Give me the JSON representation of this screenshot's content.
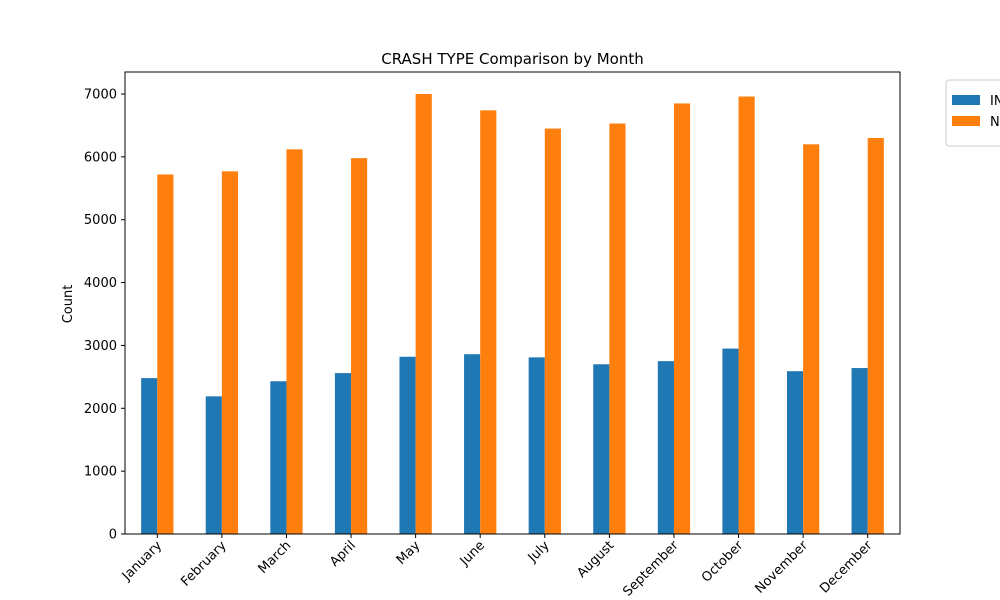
{
  "chart_data": {
    "type": "bar",
    "title": "CRASH TYPE Comparison by Month",
    "xlabel": "",
    "ylabel": "Count",
    "categories": [
      "January",
      "February",
      "March",
      "April",
      "May",
      "June",
      "July",
      "August",
      "September",
      "October",
      "November",
      "December"
    ],
    "series": [
      {
        "name": "IN",
        "color": "#1f77b4",
        "values": [
          2480,
          2190,
          2430,
          2560,
          2820,
          2860,
          2810,
          2700,
          2750,
          2950,
          2590,
          2640
        ]
      },
      {
        "name": "N",
        "color": "#ff7f0e",
        "values": [
          5720,
          5770,
          6120,
          5980,
          7000,
          6740,
          6450,
          6530,
          6850,
          6960,
          6200,
          6300
        ]
      }
    ],
    "ylim": [
      0,
      7350
    ],
    "yticks": [
      0,
      1000,
      2000,
      3000,
      4000,
      5000,
      6000,
      7000
    ],
    "grid": false,
    "legend_position": "upper right, outside plot area"
  }
}
